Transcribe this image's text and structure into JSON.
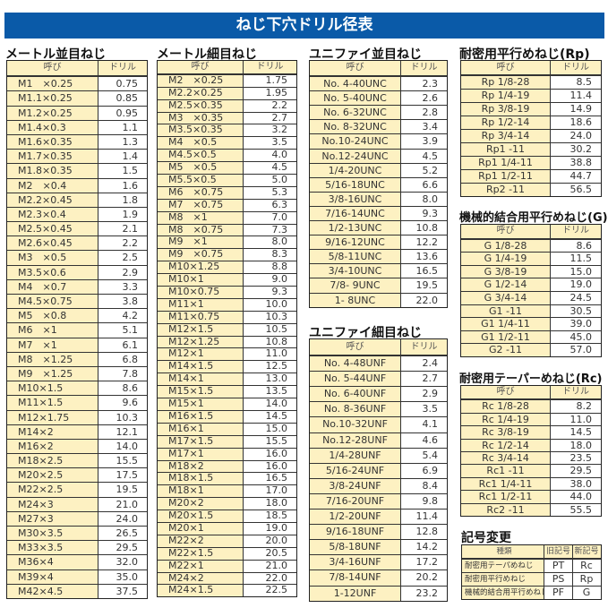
{
  "title": "ねじ下穴ドリル径表",
  "header_name": "呼び",
  "header_drill": "ドリル",
  "tables": {
    "metric_coarse": {
      "title": "メートル並目ねじ",
      "rows": [
        [
          "M1　×0.25",
          "0.75"
        ],
        [
          "M1.1×0.25",
          "0.85"
        ],
        [
          "M1.2×0.25",
          "0.95"
        ],
        [
          "M1.4×0.3",
          "1.1"
        ],
        [
          "M1.6×0.35",
          "1.3"
        ],
        [
          "M1.7×0.35",
          "1.4"
        ],
        [
          "M1.8×0.35",
          "1.5"
        ],
        [
          "M2　×0.4",
          "1.6"
        ],
        [
          "M2.2×0.45",
          "1.8"
        ],
        [
          "M2.3×0.4",
          "1.9"
        ],
        [
          "M2.5×0.45",
          "2.1"
        ],
        [
          "M2.6×0.45",
          "2.2"
        ],
        [
          "M3　×0.5",
          "2.5"
        ],
        [
          "M3.5×0.6",
          "2.9"
        ],
        [
          "M4　×0.7",
          "3.3"
        ],
        [
          "M4.5×0.75",
          "3.8"
        ],
        [
          "M5　×0.8",
          "4.2"
        ],
        [
          "M6　×1",
          "5.1"
        ],
        [
          "M7　×1",
          "6.1"
        ],
        [
          "M8　×1.25",
          "6.8"
        ],
        [
          "M9　×1.25",
          "7.8"
        ],
        [
          "M10×1.5",
          "8.6"
        ],
        [
          "M11×1.5",
          "9.6"
        ],
        [
          "M12×1.75",
          "10.3"
        ],
        [
          "M14×2",
          "12.1"
        ],
        [
          "M16×2",
          "14.0"
        ],
        [
          "M18×2.5",
          "15.5"
        ],
        [
          "M20×2.5",
          "17.5"
        ],
        [
          "M22×2.5",
          "19.5"
        ],
        [
          "M24×3",
          "21.0"
        ],
        [
          "M27×3",
          "24.0"
        ],
        [
          "M30×3.5",
          "26.5"
        ],
        [
          "M33×3.5",
          "29.5"
        ],
        [
          "M36×4",
          "32.0"
        ],
        [
          "M39×4",
          "35.0"
        ],
        [
          "M42×4.5",
          "37.5"
        ]
      ]
    },
    "metric_fine": {
      "title": "メートル細目ねじ",
      "rows": [
        [
          "M2　×0.25",
          "1.75"
        ],
        [
          "M2.2×0.25",
          "1.95"
        ],
        [
          "M2.5×0.35",
          "2.2"
        ],
        [
          "M3　×0.35",
          "2.7"
        ],
        [
          "M3.5×0.35",
          "3.2"
        ],
        [
          "M4　×0.5",
          "3.5"
        ],
        [
          "M4.5×0.5",
          "4.0"
        ],
        [
          "M5　×0.5",
          "4.5"
        ],
        [
          "M5.5×0.5",
          "5.0"
        ],
        [
          "M6　×0.75",
          "5.3"
        ],
        [
          "M7　×0.75",
          "6.3"
        ],
        [
          "M8　×1",
          "7.0"
        ],
        [
          "M8　×0.75",
          "7.3"
        ],
        [
          "M9　×1",
          "8.0"
        ],
        [
          "M9　×0.75",
          "8.3"
        ],
        [
          "M10×1.25",
          "8.8"
        ],
        [
          "M10×1",
          "9.0"
        ],
        [
          "M10×0.75",
          "9.3"
        ],
        [
          "M11×1",
          "10.0"
        ],
        [
          "M11×0.75",
          "10.3"
        ],
        [
          "M12×1.5",
          "10.5"
        ],
        [
          "M12×1.25",
          "10.8"
        ],
        [
          "M12×1",
          "11.0"
        ],
        [
          "M14×1.5",
          "12.5"
        ],
        [
          "M14×1",
          "13.0"
        ],
        [
          "M15×1.5",
          "13.5"
        ],
        [
          "M15×1",
          "14.0"
        ],
        [
          "M16×1.5",
          "14.5"
        ],
        [
          "M16×1",
          "15.0"
        ],
        [
          "M17×1.5",
          "15.5"
        ],
        [
          "M17×1",
          "16.0"
        ],
        [
          "M18×2",
          "16.0"
        ],
        [
          "M18×1.5",
          "16.5"
        ],
        [
          "M18×1",
          "17.0"
        ],
        [
          "M20×2",
          "18.0"
        ],
        [
          "M20×1.5",
          "18.5"
        ],
        [
          "M20×1",
          "19.0"
        ],
        [
          "M22×2",
          "20.0"
        ],
        [
          "M22×1.5",
          "20.5"
        ],
        [
          "M22×1",
          "21.0"
        ],
        [
          "M24×2",
          "22.0"
        ],
        [
          "M24×1.5",
          "22.5"
        ]
      ]
    },
    "unc": {
      "title": "ユニファイ並目ねじ",
      "rows": [
        [
          "No.  4-40UNC",
          "2.3"
        ],
        [
          "No.  5-40UNC",
          "2.6"
        ],
        [
          "No.  6-32UNC",
          "2.8"
        ],
        [
          "No.  8-32UNC",
          "3.4"
        ],
        [
          "No.10-24UNC",
          "3.9"
        ],
        [
          "No.12-24UNC",
          "4.5"
        ],
        [
          "1/4-20UNC",
          "5.2"
        ],
        [
          "5/16-18UNC",
          "6.6"
        ],
        [
          "3/8-16UNC",
          "8.0"
        ],
        [
          "7/16-14UNC",
          "9.3"
        ],
        [
          "1/2-13UNC",
          "10.8"
        ],
        [
          "9/16-12UNC",
          "12.2"
        ],
        [
          "5/8-11UNC",
          "13.6"
        ],
        [
          "3/4-10UNC",
          "16.5"
        ],
        [
          "7/8-  9UNC",
          "19.5"
        ],
        [
          "1-  8UNC",
          "22.0"
        ]
      ]
    },
    "unf": {
      "title": "ユニファイ細目ねじ",
      "rows": [
        [
          "No.  4-48UNF",
          "2.4"
        ],
        [
          "No.  5-44UNF",
          "2.7"
        ],
        [
          "No.  6-40UNF",
          "2.9"
        ],
        [
          "No.  8-36UNF",
          "3.5"
        ],
        [
          "No.10-32UNF",
          "4.1"
        ],
        [
          "No.12-28UNF",
          "4.6"
        ],
        [
          "1/4-28UNF",
          "5.4"
        ],
        [
          "5/16-24UNF",
          "6.9"
        ],
        [
          "3/8-24UNF",
          "8.4"
        ],
        [
          "7/16-20UNF",
          "9.8"
        ],
        [
          "1/2-20UNF",
          "11.4"
        ],
        [
          "9/16-18UNF",
          "12.8"
        ],
        [
          "5/8-18UNF",
          "14.2"
        ],
        [
          "3/4-16UNF",
          "17.2"
        ],
        [
          "7/8-14UNF",
          "20.2"
        ],
        [
          "1-12UNF",
          "23.2"
        ]
      ]
    },
    "rp": {
      "title": "耐密用平行めねじ(Rp)",
      "rows": [
        [
          "Rp  1/8-28",
          "8.5"
        ],
        [
          "Rp  1/4-19",
          "11.4"
        ],
        [
          "Rp  3/8-19",
          "14.9"
        ],
        [
          "Rp  1/2-14",
          "18.6"
        ],
        [
          "Rp  3/4-14",
          "24.0"
        ],
        [
          "Rp1     -11",
          "30.2"
        ],
        [
          "Rp1 1/4-11",
          "38.8"
        ],
        [
          "Rp1 1/2-11",
          "44.7"
        ],
        [
          "Rp2     -11",
          "56.5"
        ]
      ]
    },
    "g": {
      "title": "機械的結合用平行めねじ(G)",
      "rows": [
        [
          "G  1/8-28",
          "8.6"
        ],
        [
          "G  1/4-19",
          "11.5"
        ],
        [
          "G  3/8-19",
          "15.0"
        ],
        [
          "G  1/2-14",
          "19.0"
        ],
        [
          "G  3/4-14",
          "24.5"
        ],
        [
          "G1     -11",
          "30.5"
        ],
        [
          "G1 1/4-11",
          "39.0"
        ],
        [
          "G1 1/2-11",
          "45.0"
        ],
        [
          "G2     -11",
          "57.0"
        ]
      ]
    },
    "rc": {
      "title": "耐密用テーパーめねじ(Rc)",
      "rows": [
        [
          "Rc  1/8-28",
          "8.2"
        ],
        [
          "Rc  1/4-19",
          "11.0"
        ],
        [
          "Rc  3/8-19",
          "14.5"
        ],
        [
          "Rc  1/2-14",
          "18.0"
        ],
        [
          "Rc  3/4-14",
          "23.5"
        ],
        [
          "Rc1     -11",
          "29.5"
        ],
        [
          "Rc1 1/4-11",
          "38.0"
        ],
        [
          "Rc1 1/2-11",
          "44.0"
        ],
        [
          "Rc2     -11",
          "55.5"
        ]
      ]
    }
  },
  "symbols": {
    "title": "記号変更",
    "headers": [
      "種類",
      "旧記号",
      "新記号"
    ],
    "rows": [
      [
        "耐密用テーパめねじ",
        "PT",
        "Rc"
      ],
      [
        "耐密用平行めねじ",
        "PS",
        "Rp"
      ],
      [
        "機械的結合用平行めねじ",
        "PF",
        "G"
      ]
    ]
  }
}
